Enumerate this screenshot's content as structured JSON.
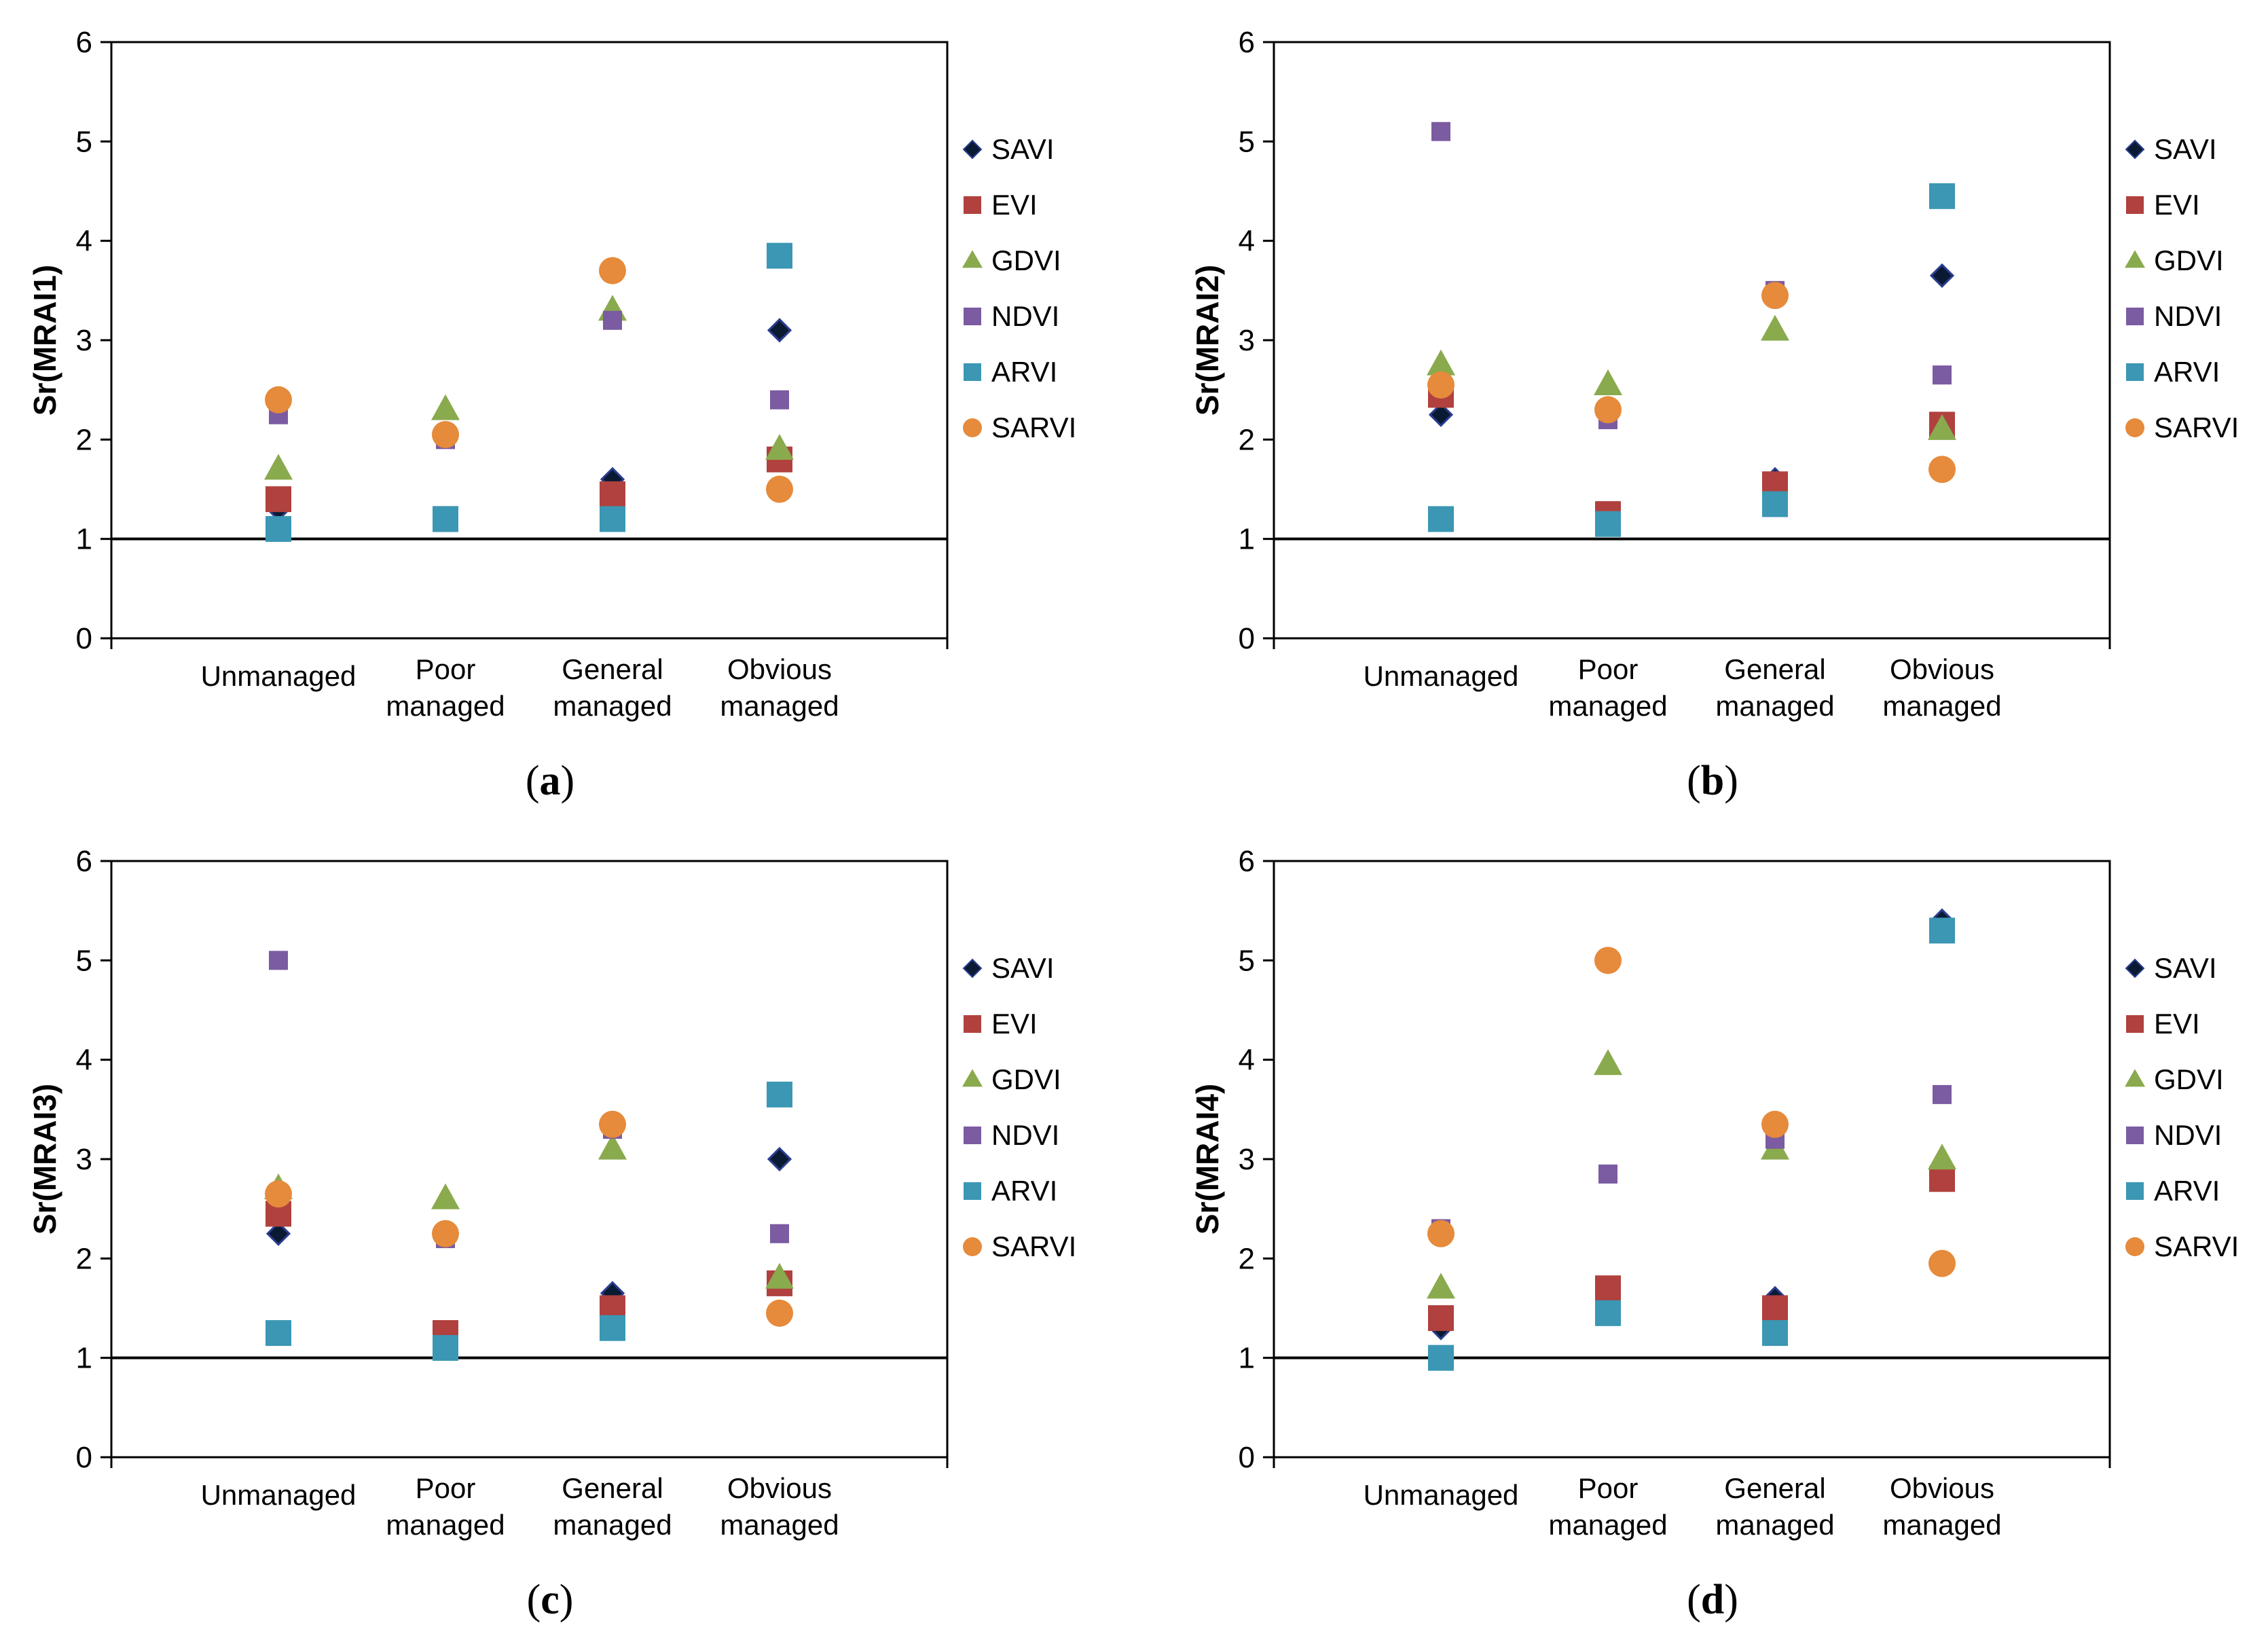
{
  "categories": [
    "Unmanaged",
    "Poor managed",
    "General managed",
    "Obvious managed"
  ],
  "colors": {
    "SAVI": "#0b1a33",
    "EVI": "#b0413e",
    "GDVI": "#8aaa4e",
    "NDVI": "#7b5ba1",
    "ARVI": "#3b97b4",
    "SARVI": "#e68a3b"
  },
  "markers": {
    "SAVI": "diamond",
    "EVI": "square",
    "GDVI": "triangle",
    "NDVI": "small-square",
    "ARVI": "square",
    "SARVI": "circle"
  },
  "chart_data": [
    {
      "type": "scatter",
      "panel": "a",
      "caption": "(a)",
      "caption_letter": "a",
      "ylabel": "Sr(MRAI1)",
      "categories": [
        "Unmanaged",
        "Poor managed",
        "General managed",
        "Obvious managed"
      ],
      "ylim": [
        0,
        6
      ],
      "yticks": [
        "0",
        "1",
        "2",
        "3",
        "4",
        "5",
        "6"
      ],
      "reference_line": 1,
      "legend_position": "right",
      "series": [
        {
          "name": "SAVI",
          "values": [
            1.3,
            1.2,
            1.6,
            3.1
          ]
        },
        {
          "name": "EVI",
          "values": [
            1.4,
            1.2,
            1.45,
            1.8
          ]
        },
        {
          "name": "GDVI",
          "values": [
            1.7,
            2.3,
            3.3,
            1.9
          ]
        },
        {
          "name": "NDVI",
          "values": [
            2.25,
            2.0,
            3.2,
            2.4
          ]
        },
        {
          "name": "ARVI",
          "values": [
            1.1,
            1.2,
            1.2,
            3.85
          ]
        },
        {
          "name": "SARVI",
          "values": [
            2.4,
            2.05,
            3.7,
            1.5
          ]
        }
      ]
    },
    {
      "type": "scatter",
      "panel": "b",
      "caption": "(b)",
      "caption_letter": "b",
      "ylabel": "Sr(MRAI2)",
      "categories": [
        "Unmanaged",
        "Poor managed",
        "General managed",
        "Obvious managed"
      ],
      "ylim": [
        0,
        6
      ],
      "yticks": [
        "0",
        "1",
        "2",
        "3",
        "4",
        "5",
        "6"
      ],
      "reference_line": 1,
      "legend_position": "right",
      "series": [
        {
          "name": "SAVI",
          "values": [
            2.25,
            1.2,
            1.6,
            3.65
          ]
        },
        {
          "name": "EVI",
          "values": [
            2.45,
            1.25,
            1.55,
            2.15
          ]
        },
        {
          "name": "GDVI",
          "values": [
            2.75,
            2.55,
            3.1,
            2.1
          ]
        },
        {
          "name": "NDVI",
          "values": [
            5.1,
            2.2,
            3.5,
            2.65
          ]
        },
        {
          "name": "ARVI",
          "values": [
            1.2,
            1.15,
            1.35,
            4.45
          ]
        },
        {
          "name": "SARVI",
          "values": [
            2.55,
            2.3,
            3.45,
            1.7
          ]
        }
      ]
    },
    {
      "type": "scatter",
      "panel": "c",
      "caption": "(c)",
      "caption_letter": "c",
      "ylabel": "Sr(MRAI3)",
      "categories": [
        "Unmanaged",
        "Poor managed",
        "General managed",
        "Obvious managed"
      ],
      "ylim": [
        0,
        6
      ],
      "yticks": [
        "0",
        "1",
        "2",
        "3",
        "4",
        "5",
        "6"
      ],
      "reference_line": 1,
      "legend_position": "right",
      "series": [
        {
          "name": "SAVI",
          "values": [
            2.25,
            1.2,
            1.65,
            3.0
          ]
        },
        {
          "name": "EVI",
          "values": [
            2.45,
            1.25,
            1.5,
            1.75
          ]
        },
        {
          "name": "GDVI",
          "values": [
            2.7,
            2.6,
            3.1,
            1.8
          ]
        },
        {
          "name": "NDVI",
          "values": [
            5.0,
            2.2,
            3.3,
            2.25
          ]
        },
        {
          "name": "ARVI",
          "values": [
            1.25,
            1.1,
            1.3,
            3.65
          ]
        },
        {
          "name": "SARVI",
          "values": [
            2.65,
            2.25,
            3.35,
            1.45
          ]
        }
      ]
    },
    {
      "type": "scatter",
      "panel": "d",
      "caption": "(d)",
      "caption_letter": "d",
      "ylabel": "Sr(MRAI4)",
      "categories": [
        "Unmanaged",
        "Poor managed",
        "General managed",
        "Obvious managed"
      ],
      "ylim": [
        0,
        6
      ],
      "yticks": [
        "0",
        "1",
        "2",
        "3",
        "4",
        "5",
        "6"
      ],
      "reference_line": 1,
      "legend_position": "right",
      "series": [
        {
          "name": "SAVI",
          "values": [
            1.3,
            1.7,
            1.6,
            5.4
          ]
        },
        {
          "name": "EVI",
          "values": [
            1.4,
            1.7,
            1.5,
            2.8
          ]
        },
        {
          "name": "GDVI",
          "values": [
            1.7,
            3.95,
            3.1,
            3.0
          ]
        },
        {
          "name": "NDVI",
          "values": [
            2.3,
            2.85,
            3.2,
            3.65
          ]
        },
        {
          "name": "ARVI",
          "values": [
            1.0,
            1.45,
            1.25,
            5.3
          ]
        },
        {
          "name": "SARVI",
          "values": [
            2.25,
            5.0,
            3.35,
            1.95
          ]
        }
      ]
    }
  ]
}
